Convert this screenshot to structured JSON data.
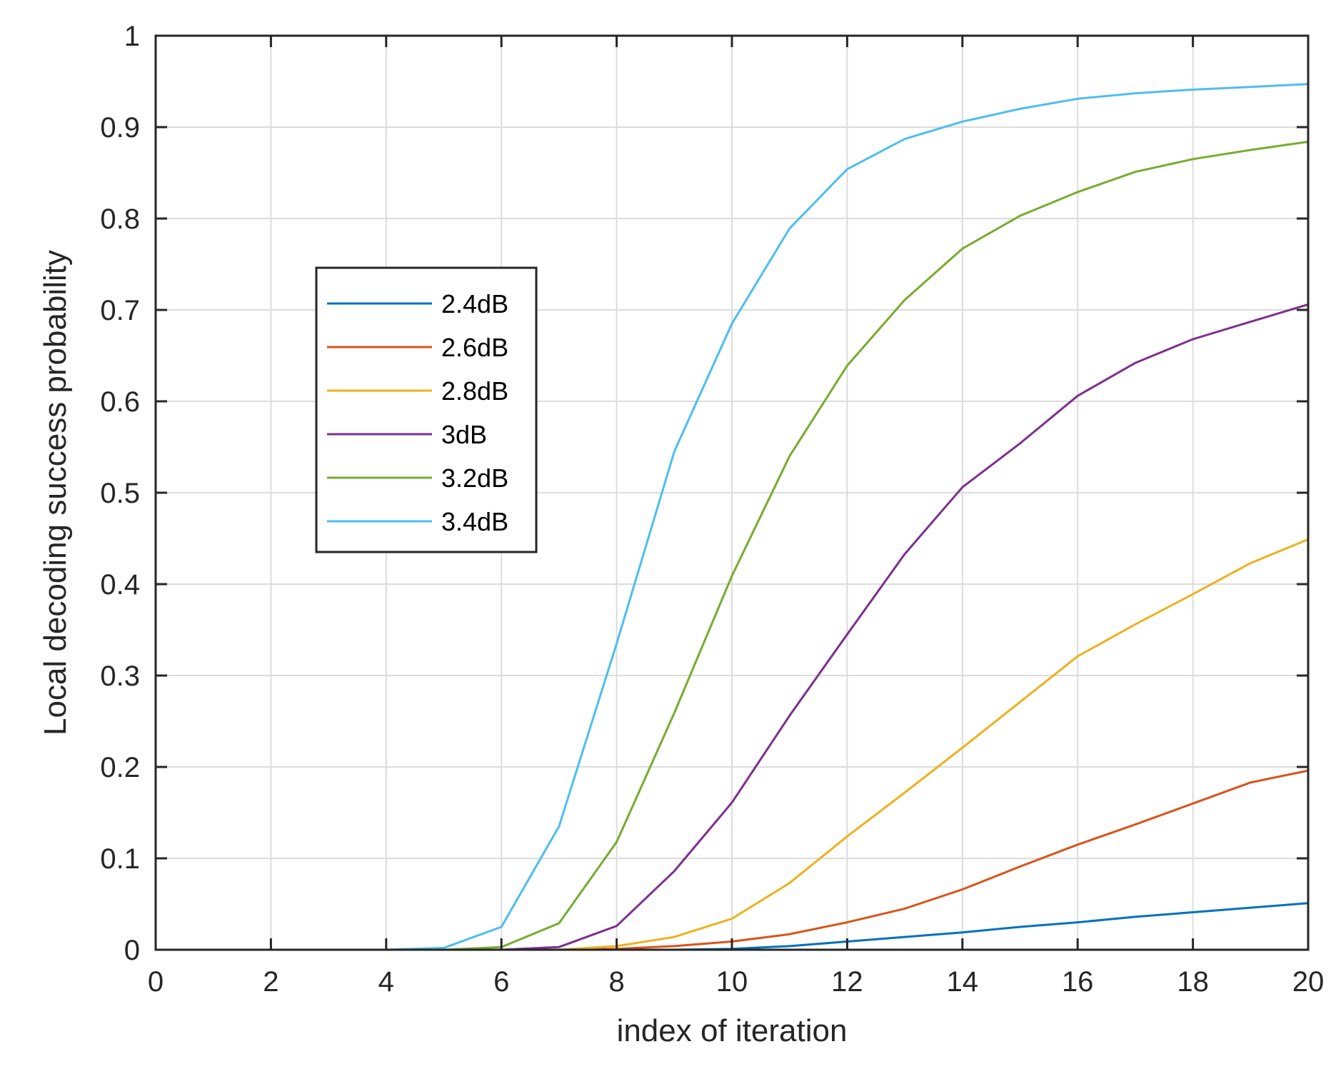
{
  "chart_data": {
    "type": "line",
    "title": "",
    "xlabel": "index of iteration",
    "ylabel": "Local decoding success probability",
    "xlim": [
      0,
      20
    ],
    "ylim": [
      0,
      1
    ],
    "xticks": [
      0,
      2,
      4,
      6,
      8,
      10,
      12,
      14,
      16,
      18,
      20
    ],
    "xtick_labels": [
      "0",
      "2",
      "4",
      "6",
      "8",
      "10",
      "12",
      "14",
      "16",
      "18",
      "20"
    ],
    "yticks": [
      0,
      0.1,
      0.2,
      0.3,
      0.4,
      0.5,
      0.6,
      0.7,
      0.8,
      0.9,
      1
    ],
    "ytick_labels": [
      "0",
      "0.1",
      "0.2",
      "0.3",
      "0.4",
      "0.5",
      "0.6",
      "0.7",
      "0.8",
      "0.9",
      "1"
    ],
    "grid": true,
    "legend_position": "upper-left",
    "x": [
      1,
      2,
      3,
      4,
      5,
      6,
      7,
      8,
      9,
      10,
      11,
      12,
      13,
      14,
      15,
      16,
      17,
      18,
      19,
      20
    ],
    "series": [
      {
        "name": "2.4dB",
        "color": "#0072BD",
        "values": [
          0,
          0,
          0,
          0,
          0,
          0,
          0,
          0,
          0,
          0.001,
          0.004,
          0.009,
          0.014,
          0.019,
          0.025,
          0.03,
          0.036,
          0.041,
          0.046,
          0.051
        ]
      },
      {
        "name": "2.6dB",
        "color": "#D95319",
        "values": [
          0,
          0,
          0,
          0,
          0,
          0,
          0,
          0.001,
          0.004,
          0.009,
          0.017,
          0.03,
          0.045,
          0.066,
          0.091,
          0.115,
          0.137,
          0.16,
          0.183,
          0.196
        ]
      },
      {
        "name": "2.8dB",
        "color": "#EDB120",
        "values": [
          0,
          0,
          0,
          0,
          0,
          0,
          0,
          0.004,
          0.014,
          0.034,
          0.073,
          0.124,
          0.172,
          0.221,
          0.271,
          0.321,
          0.356,
          0.389,
          0.423,
          0.449
        ]
      },
      {
        "name": "3dB",
        "color": "#7E2F8E",
        "values": [
          0,
          0,
          0,
          0,
          0,
          0,
          0.003,
          0.026,
          0.086,
          0.161,
          0.256,
          0.345,
          0.433,
          0.506,
          0.554,
          0.606,
          0.642,
          0.668,
          0.687,
          0.706
        ]
      },
      {
        "name": "3.2dB",
        "color": "#77AC30",
        "values": [
          0,
          0,
          0,
          0,
          0,
          0.003,
          0.029,
          0.118,
          0.259,
          0.409,
          0.54,
          0.639,
          0.711,
          0.767,
          0.803,
          0.829,
          0.851,
          0.865,
          0.875,
          0.884
        ]
      },
      {
        "name": "3.4dB",
        "color": "#4DBEEE",
        "values": [
          0,
          0,
          0,
          0,
          0.002,
          0.025,
          0.135,
          0.335,
          0.545,
          0.685,
          0.789,
          0.854,
          0.887,
          0.906,
          0.92,
          0.931,
          0.937,
          0.941,
          0.944,
          0.947
        ]
      }
    ]
  }
}
